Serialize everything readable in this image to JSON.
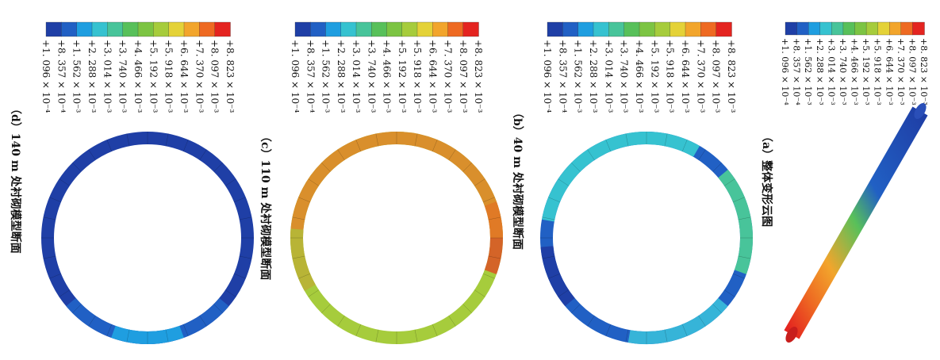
{
  "legend": {
    "labels": [
      "+1. 096 × 10⁻⁴",
      "+8. 357 × 10⁻⁴",
      "+1. 562 × 10⁻³",
      "+2. 288 × 10⁻³",
      "+3. 014 × 10⁻³",
      "+3. 740 × 10⁻³",
      "+4. 466 × 10⁻³",
      "+5. 192 × 10⁻³",
      "+5. 918 × 10⁻³",
      "+6. 644 × 10⁻³",
      "+7. 370 × 10⁻³",
      "+8. 097 × 10⁻³",
      "+8. 823 × 10⁻³"
    ],
    "colors": [
      "#1f3fa6",
      "#2160c4",
      "#1f9ee0",
      "#36c2d0",
      "#48c49a",
      "#58c05a",
      "#7cc443",
      "#a6cc3c",
      "#e4d238",
      "#f2a52c",
      "#ee6a22",
      "#e42420"
    ]
  },
  "panels": [
    {
      "caption": "（d）140 m 处衬砌模型断面"
    },
    {
      "caption": "（c）110 m 处衬砌模型断面"
    },
    {
      "caption": "（b）40 m 处衬砌模型断面"
    },
    {
      "caption": "（a）整体变形云图"
    }
  ]
}
